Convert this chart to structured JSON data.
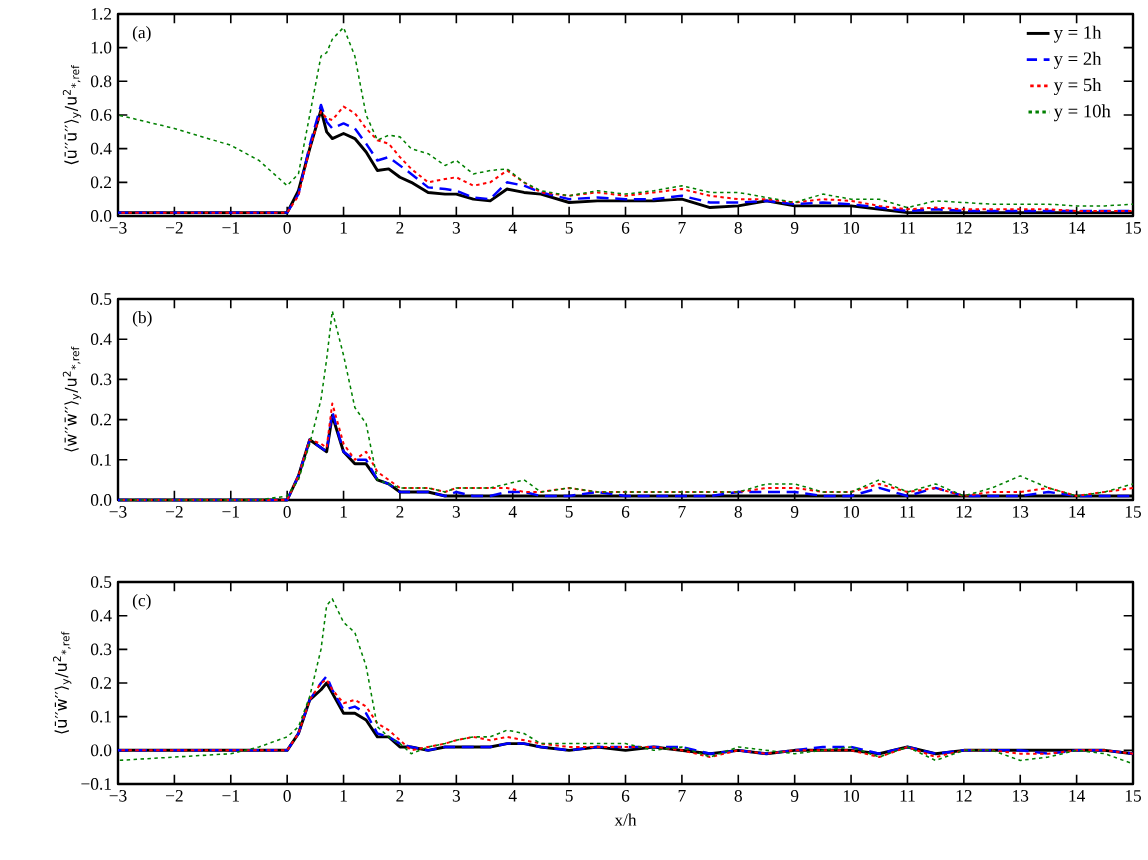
{
  "chart_data": [
    {
      "type": "line",
      "ylabel": "⟨ū′′ū′′⟩$_{y}$/u$^{2}$$_{*,ref}$",
      "annotations": [
        "(a)"
      ],
      "legend": "top right",
      "xlim": [
        -3,
        15
      ],
      "ylim": [
        0,
        1.2
      ],
      "xticks": [
        {
          "value": -3,
          "label": "−3"
        },
        {
          "value": -2,
          "label": "−2"
        },
        {
          "value": -1,
          "label": "−1"
        },
        0,
        1,
        2,
        3,
        4,
        5,
        6,
        7,
        8,
        9,
        10,
        11,
        12,
        13,
        14,
        15
      ],
      "yticks": [
        {
          "value": 0,
          "label": "0.0"
        },
        0.2,
        0.4,
        0.6,
        0.8,
        {
          "value": 1,
          "label": "1.0"
        },
        1.2
      ],
      "x": [
        -3,
        -2,
        -1,
        -0.5,
        0,
        0.2,
        0.4,
        0.6,
        0.7,
        0.8,
        1.0,
        1.2,
        1.4,
        1.6,
        1.8,
        2.0,
        2.2,
        2.5,
        2.8,
        3.0,
        3.3,
        3.6,
        3.9,
        4.2,
        4.5,
        5,
        5.5,
        6,
        6.5,
        7,
        7.5,
        8,
        8.5,
        9,
        9.5,
        10,
        10.5,
        11,
        11.5,
        12,
        12.5,
        13,
        13.5,
        14,
        14.5,
        15
      ],
      "series": [
        {
          "name": "y = 1h",
          "color": "#000000",
          "line_style": "solid",
          "values": [
            0.02,
            0.02,
            0.02,
            0.02,
            0.02,
            0.15,
            0.4,
            0.63,
            0.5,
            0.46,
            0.49,
            0.46,
            0.38,
            0.27,
            0.28,
            0.23,
            0.2,
            0.14,
            0.13,
            0.13,
            0.1,
            0.09,
            0.16,
            0.14,
            0.13,
            0.08,
            0.09,
            0.09,
            0.09,
            0.1,
            0.05,
            0.06,
            0.09,
            0.06,
            0.06,
            0.06,
            0.04,
            0.02,
            0.02,
            0.02,
            0.02,
            0.02,
            0.02,
            0.02,
            0.02,
            0.02
          ]
        },
        {
          "name": "y = 2h",
          "color": "#0000ff",
          "line_style": "dashed",
          "values": [
            0.02,
            0.02,
            0.02,
            0.02,
            0.02,
            0.13,
            0.42,
            0.66,
            0.56,
            0.52,
            0.55,
            0.52,
            0.43,
            0.33,
            0.35,
            0.3,
            0.25,
            0.17,
            0.16,
            0.15,
            0.11,
            0.1,
            0.2,
            0.18,
            0.14,
            0.1,
            0.11,
            0.1,
            0.1,
            0.12,
            0.08,
            0.08,
            0.09,
            0.07,
            0.08,
            0.07,
            0.05,
            0.03,
            0.04,
            0.03,
            0.03,
            0.03,
            0.03,
            0.03,
            0.03,
            0.03
          ]
        },
        {
          "name": "y = 5h",
          "color": "#ff0000",
          "line_style": "dotted",
          "values": [
            0.02,
            0.02,
            0.02,
            0.02,
            0.02,
            0.12,
            0.4,
            0.62,
            0.58,
            0.57,
            0.65,
            0.61,
            0.52,
            0.45,
            0.43,
            0.35,
            0.28,
            0.2,
            0.22,
            0.23,
            0.18,
            0.2,
            0.27,
            0.2,
            0.14,
            0.12,
            0.14,
            0.12,
            0.14,
            0.16,
            0.12,
            0.1,
            0.1,
            0.08,
            0.1,
            0.09,
            0.06,
            0.04,
            0.05,
            0.04,
            0.04,
            0.04,
            0.04,
            0.03,
            0.03,
            0.03
          ]
        },
        {
          "name": "y = 10h",
          "color": "#008000",
          "line_style": "dotted",
          "values": [
            0.6,
            0.52,
            0.42,
            0.33,
            0.18,
            0.25,
            0.6,
            0.95,
            0.97,
            1.05,
            1.12,
            0.95,
            0.6,
            0.45,
            0.48,
            0.47,
            0.4,
            0.37,
            0.3,
            0.33,
            0.25,
            0.27,
            0.28,
            0.2,
            0.15,
            0.12,
            0.15,
            0.13,
            0.15,
            0.18,
            0.14,
            0.14,
            0.11,
            0.08,
            0.13,
            0.1,
            0.1,
            0.05,
            0.09,
            0.08,
            0.07,
            0.07,
            0.07,
            0.06,
            0.06,
            0.07
          ]
        }
      ]
    },
    {
      "type": "line",
      "ylabel": "⟨w̄′′w̄′′⟩$_{y}$/u$^{2}$$_{*,ref}$",
      "annotations": [
        "(b)"
      ],
      "xlim": [
        -3,
        15
      ],
      "ylim": [
        0,
        0.5
      ],
      "xticks": [
        {
          "value": -3,
          "label": "−3"
        },
        {
          "value": -2,
          "label": "−2"
        },
        {
          "value": -1,
          "label": "−1"
        },
        0,
        1,
        2,
        3,
        4,
        5,
        6,
        7,
        8,
        9,
        10,
        11,
        12,
        13,
        14,
        15
      ],
      "yticks": [
        {
          "value": 0,
          "label": "0.0"
        },
        0.1,
        0.2,
        0.3,
        0.4,
        0.5
      ],
      "x": [
        -3,
        -2,
        -1,
        -0.5,
        0,
        0.2,
        0.4,
        0.6,
        0.7,
        0.8,
        1.0,
        1.2,
        1.4,
        1.6,
        1.8,
        2.0,
        2.2,
        2.5,
        2.8,
        3.0,
        3.3,
        3.6,
        3.9,
        4.2,
        4.5,
        5,
        5.5,
        6,
        6.5,
        7,
        7.5,
        8,
        8.5,
        9,
        9.5,
        10,
        10.5,
        11,
        11.5,
        12,
        12.5,
        13,
        13.5,
        14,
        14.5,
        15
      ],
      "series": [
        {
          "color": "#000000",
          "line_style": "solid",
          "values": [
            0,
            0,
            0,
            0,
            0,
            0.06,
            0.15,
            0.13,
            0.12,
            0.21,
            0.12,
            0.09,
            0.09,
            0.05,
            0.04,
            0.02,
            0.02,
            0.02,
            0.01,
            0.01,
            0.01,
            0.01,
            0.01,
            0.01,
            0.01,
            0.01,
            0.01,
            0.01,
            0.01,
            0.01,
            0.01,
            0.01,
            0.01,
            0.01,
            0.01,
            0.01,
            0.01,
            0.01,
            0.01,
            0.01,
            0.01,
            0.01,
            0.01,
            0.01,
            0.01,
            0.01
          ]
        },
        {
          "color": "#0000ff",
          "line_style": "dashed",
          "values": [
            0,
            0,
            0,
            0,
            0,
            0.06,
            0.15,
            0.13,
            0.12,
            0.22,
            0.12,
            0.1,
            0.1,
            0.05,
            0.04,
            0.02,
            0.02,
            0.02,
            0.01,
            0.02,
            0.01,
            0.01,
            0.02,
            0.02,
            0.01,
            0.01,
            0.02,
            0.01,
            0.01,
            0.01,
            0.01,
            0.02,
            0.02,
            0.02,
            0.01,
            0.01,
            0.03,
            0.01,
            0.03,
            0.01,
            0.01,
            0.01,
            0.02,
            0.01,
            0.01,
            0.01
          ]
        },
        {
          "color": "#ff0000",
          "line_style": "dotted",
          "values": [
            0,
            0,
            0,
            0,
            0,
            0.06,
            0.15,
            0.14,
            0.13,
            0.24,
            0.14,
            0.1,
            0.12,
            0.07,
            0.05,
            0.03,
            0.03,
            0.03,
            0.02,
            0.03,
            0.03,
            0.03,
            0.03,
            0.02,
            0.02,
            0.03,
            0.02,
            0.02,
            0.02,
            0.02,
            0.02,
            0.02,
            0.03,
            0.03,
            0.02,
            0.02,
            0.04,
            0.02,
            0.03,
            0.01,
            0.02,
            0.02,
            0.03,
            0.01,
            0.02,
            0.03
          ]
        },
        {
          "color": "#008000",
          "line_style": "dotted",
          "values": [
            0,
            0,
            0,
            0,
            0.01,
            0.05,
            0.14,
            0.25,
            0.35,
            0.47,
            0.36,
            0.23,
            0.19,
            0.05,
            0.04,
            0.03,
            0.03,
            0.03,
            0.02,
            0.03,
            0.03,
            0.03,
            0.04,
            0.05,
            0.02,
            0.03,
            0.02,
            0.02,
            0.02,
            0.02,
            0.02,
            0.02,
            0.04,
            0.04,
            0.02,
            0.02,
            0.05,
            0.02,
            0.04,
            0.01,
            0.03,
            0.06,
            0.03,
            0.01,
            0.02,
            0.04
          ]
        }
      ]
    },
    {
      "type": "line",
      "ylabel": "⟨ū′′w̄′′⟩$_{y}$/u$^{2}$$_{*,ref}$",
      "xlabel": "x/h",
      "annotations": [
        "(c)"
      ],
      "xlim": [
        -3,
        15
      ],
      "ylim": [
        -0.1,
        0.5
      ],
      "xticks": [
        {
          "value": -3,
          "label": "−3"
        },
        {
          "value": -2,
          "label": "−2"
        },
        {
          "value": -1,
          "label": "−1"
        },
        0,
        1,
        2,
        3,
        4,
        5,
        6,
        7,
        8,
        9,
        10,
        11,
        12,
        13,
        14,
        15
      ],
      "yticks": [
        {
          "value": -0.1,
          "label": "−0.1"
        },
        {
          "value": 0,
          "label": "0.0"
        },
        0.1,
        0.2,
        0.3,
        0.4,
        0.5
      ],
      "x": [
        -3,
        -2,
        -1,
        -0.5,
        0,
        0.2,
        0.4,
        0.6,
        0.7,
        0.8,
        1.0,
        1.2,
        1.4,
        1.6,
        1.8,
        2.0,
        2.2,
        2.5,
        2.8,
        3.0,
        3.3,
        3.6,
        3.9,
        4.2,
        4.5,
        5,
        5.5,
        6,
        6.5,
        7,
        7.5,
        8,
        8.5,
        9,
        9.5,
        10,
        10.5,
        11,
        11.5,
        12,
        12.5,
        13,
        13.5,
        14,
        14.5,
        15
      ],
      "series": [
        {
          "color": "#000000",
          "line_style": "solid",
          "values": [
            0,
            0,
            0,
            0,
            0,
            0.05,
            0.15,
            0.18,
            0.2,
            0.17,
            0.11,
            0.11,
            0.09,
            0.04,
            0.04,
            0.01,
            0.01,
            0,
            0.01,
            0.01,
            0.01,
            0.01,
            0.02,
            0.02,
            0.01,
            0,
            0.01,
            0,
            0.01,
            0,
            -0.01,
            0,
            -0.01,
            0,
            0,
            0,
            -0.01,
            0.01,
            -0.01,
            0,
            0,
            0,
            0,
            0,
            0,
            -0.01
          ]
        },
        {
          "color": "#0000ff",
          "line_style": "dashed",
          "values": [
            0,
            0,
            0,
            0,
            0,
            0.05,
            0.15,
            0.2,
            0.22,
            0.18,
            0.12,
            0.13,
            0.11,
            0.05,
            0.04,
            0.02,
            0.01,
            0,
            0.01,
            0.01,
            0.01,
            0.01,
            0.02,
            0.02,
            0.01,
            0,
            0.01,
            0.01,
            0.01,
            0.01,
            -0.01,
            0,
            -0.01,
            0,
            0.01,
            0.01,
            -0.01,
            0.01,
            -0.01,
            0,
            0,
            0,
            -0.01,
            0,
            0,
            -0.01
          ]
        },
        {
          "color": "#ff0000",
          "line_style": "dotted",
          "values": [
            0,
            0,
            0,
            0,
            0,
            0.05,
            0.15,
            0.2,
            0.21,
            0.18,
            0.14,
            0.15,
            0.13,
            0.08,
            0.06,
            0.03,
            0,
            0.01,
            0.02,
            0.03,
            0.04,
            0.03,
            0.04,
            0.03,
            0.02,
            0.01,
            0.01,
            0.01,
            0.01,
            0,
            -0.02,
            0,
            -0.01,
            0,
            0,
            0,
            -0.02,
            0.01,
            -0.02,
            0,
            0,
            -0.01,
            -0.01,
            0,
            0,
            -0.01
          ]
        },
        {
          "color": "#008000",
          "line_style": "dotted",
          "values": [
            -0.03,
            -0.02,
            -0.01,
            0.01,
            0.04,
            0.07,
            0.16,
            0.3,
            0.43,
            0.45,
            0.38,
            0.35,
            0.25,
            0.07,
            0.04,
            0.02,
            -0.01,
            0.01,
            0.02,
            0.03,
            0.04,
            0.04,
            0.06,
            0.05,
            0.02,
            0.02,
            0.02,
            0.02,
            0,
            0.01,
            -0.02,
            0.01,
            0,
            -0.01,
            0,
            0.01,
            -0.02,
            0.01,
            -0.03,
            0,
            0,
            -0.03,
            -0.02,
            0,
            -0.01,
            -0.04
          ]
        }
      ]
    }
  ]
}
